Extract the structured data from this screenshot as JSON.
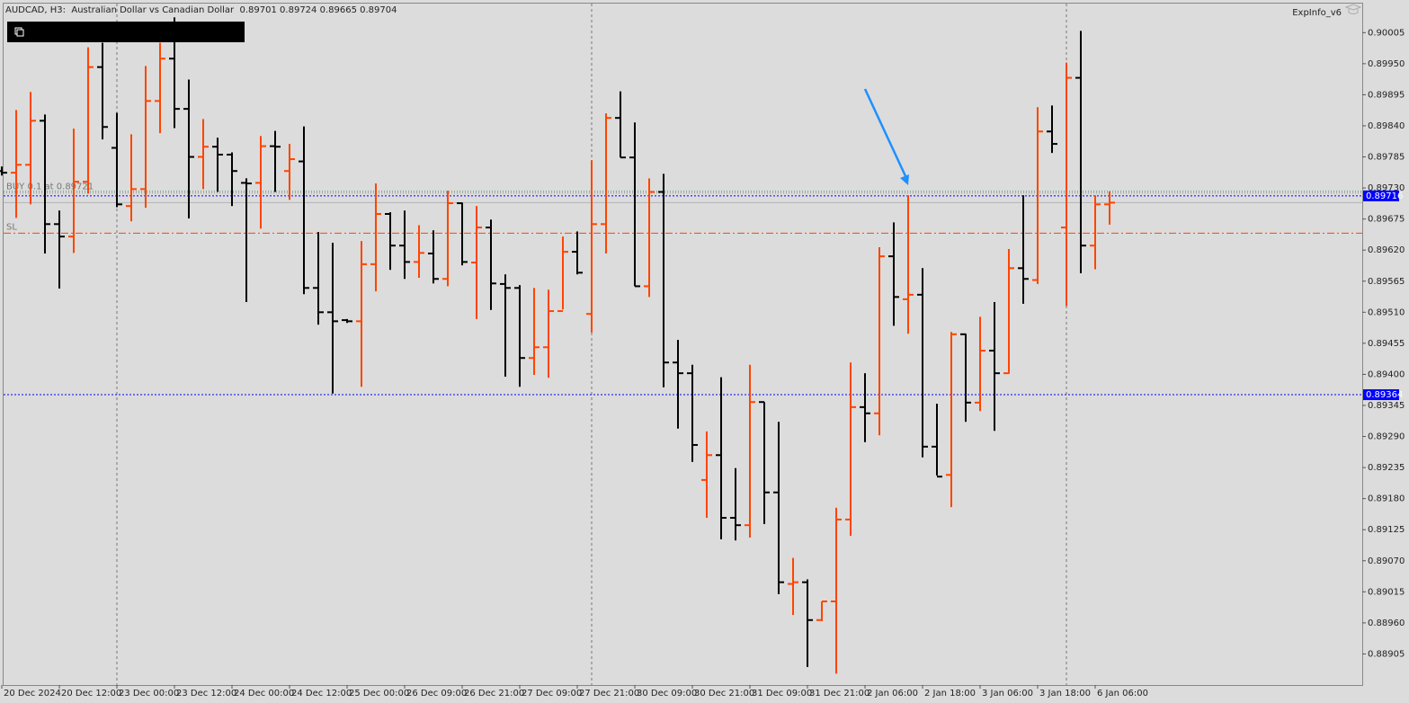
{
  "chart_data": {
    "type": "ohlc",
    "title": "AUDCAD, H3:  Australian Dollar vs Canadian Dollar  0.89701 0.89724 0.89665 0.89704",
    "indicator": "ExpInfo_v6",
    "up_color": "#ff4500",
    "down_color": "#000000",
    "grid": false,
    "categories": [
      "20 Dec 2024",
      null,
      null,
      null,
      "20 Dec 12:00",
      null,
      null,
      null,
      "23 Dec 00:00",
      null,
      null,
      null,
      "23 Dec 12:00",
      null,
      null,
      null,
      "24 Dec 00:00",
      null,
      null,
      null,
      "24 Dec 12:00",
      null,
      null,
      null,
      "25 Dec 00:00",
      null,
      null,
      null,
      "26 Dec 09:00",
      null,
      null,
      null,
      "26 Dec 21:00",
      null,
      null,
      null,
      "27 Dec 09:00",
      null,
      null,
      null,
      "27 Dec 21:00",
      null,
      null,
      null,
      "30 Dec 09:00",
      null,
      null,
      null,
      "30 Dec 21:00",
      null,
      null,
      null,
      "31 Dec 09:00",
      null,
      null,
      null,
      "31 Dec 21:00",
      null,
      null,
      null,
      "2 Jan 06:00",
      null,
      null,
      null,
      "2 Jan 18:00",
      null,
      null,
      null,
      "3 Jan 06:00",
      null,
      null,
      null,
      "3 Jan 18:00",
      null,
      null,
      null,
      "6 Jan 06:00",
      null
    ],
    "open": [
      0.8976,
      0.89757,
      0.89771,
      0.89849,
      0.89666,
      0.89644,
      0.89741,
      0.89944,
      0.89801,
      0.89698,
      0.89728,
      0.89884,
      0.89959,
      0.8987,
      0.89785,
      0.89803,
      0.89789,
      0.89739,
      0.89739,
      0.89804,
      0.8976,
      0.89777,
      0.89553,
      0.8951,
      0.89496,
      0.89494,
      0.89595,
      0.89684,
      0.89628,
      0.89599,
      0.89614,
      0.89569,
      0.89703,
      0.89598,
      0.8966,
      0.8956,
      0.89553,
      0.89429,
      0.89448,
      0.89512,
      0.89617,
      0.89507,
      0.89666,
      0.89854,
      0.89784,
      0.89556,
      0.89723,
      0.89421,
      0.89402,
      0.89213,
      0.89257,
      0.89146,
      0.89133,
      0.89351,
      0.89191,
      0.89029,
      0.89032,
      0.88965,
      0.88998,
      0.89143,
      0.89342,
      0.89331,
      0.89609,
      0.89533,
      0.89541,
      0.89272,
      0.89222,
      0.89471,
      0.8935,
      0.89442,
      0.89402,
      0.89588,
      0.89567,
      0.8983,
      0.8966,
      0.89925,
      0.89628,
      0.89701
    ],
    "high": [
      0.89768,
      0.89868,
      0.899,
      0.8986,
      0.8969,
      0.89835,
      0.89979,
      0.89987,
      0.89863,
      0.89825,
      0.89946,
      0.89987,
      0.90032,
      0.89922,
      0.89852,
      0.89819,
      0.89793,
      0.89747,
      0.89822,
      0.89831,
      0.89808,
      0.89839,
      0.89652,
      0.89633,
      0.89498,
      0.89636,
      0.89738,
      0.89687,
      0.8969,
      0.89664,
      0.89655,
      0.89725,
      0.89704,
      0.89698,
      0.89674,
      0.89577,
      0.89558,
      0.89553,
      0.8955,
      0.89644,
      0.89653,
      0.89779,
      0.89862,
      0.89901,
      0.89846,
      0.89747,
      0.89755,
      0.89461,
      0.89417,
      0.89299,
      0.89395,
      0.89234,
      0.89417,
      0.89351,
      0.89316,
      0.89075,
      0.89037,
      0.88998,
      0.89164,
      0.89421,
      0.89402,
      0.89625,
      0.89669,
      0.89717,
      0.89588,
      0.89348,
      0.89475,
      0.89472,
      0.89502,
      0.89528,
      0.89622,
      0.89717,
      0.89873,
      0.89876,
      0.89952,
      0.90008,
      0.89717,
      0.89724
    ],
    "low": [
      0.89752,
      0.89677,
      0.89701,
      0.89614,
      0.89552,
      0.89615,
      0.8972,
      0.89816,
      0.89696,
      0.89671,
      0.89695,
      0.89827,
      0.89836,
      0.89676,
      0.89728,
      0.89723,
      0.89698,
      0.89528,
      0.89658,
      0.89723,
      0.89709,
      0.89542,
      0.89488,
      0.89366,
      0.89491,
      0.89378,
      0.89547,
      0.89585,
      0.89569,
      0.89571,
      0.89561,
      0.89556,
      0.89593,
      0.89498,
      0.89514,
      0.89396,
      0.89378,
      0.89399,
      0.89394,
      0.89515,
      0.89577,
      0.89474,
      0.89614,
      0.89784,
      0.89556,
      0.89537,
      0.89377,
      0.89304,
      0.89245,
      0.89146,
      0.89108,
      0.89106,
      0.89111,
      0.89135,
      0.89011,
      0.88974,
      0.88882,
      0.88963,
      0.8887,
      0.89114,
      0.8928,
      0.89292,
      0.89486,
      0.89472,
      0.89253,
      0.89221,
      0.89165,
      0.89316,
      0.89335,
      0.893,
      0.89401,
      0.89525,
      0.8956,
      0.89792,
      0.89521,
      0.89579,
      0.89586,
      0.89665
    ],
    "close": [
      0.89757,
      0.89771,
      0.89849,
      0.89666,
      0.89644,
      0.89741,
      0.89944,
      0.89838,
      0.89701,
      0.89728,
      0.89884,
      0.89959,
      0.8987,
      0.89785,
      0.89803,
      0.89789,
      0.8976,
      0.89738,
      0.89804,
      0.89803,
      0.89781,
      0.89553,
      0.8951,
      0.89494,
      0.89494,
      0.89595,
      0.89684,
      0.89628,
      0.89599,
      0.89615,
      0.89569,
      0.89703,
      0.89599,
      0.8966,
      0.89561,
      0.89553,
      0.89429,
      0.89448,
      0.89512,
      0.89617,
      0.8958,
      0.89666,
      0.89854,
      0.89784,
      0.89556,
      0.89723,
      0.89421,
      0.89402,
      0.89275,
      0.89257,
      0.89146,
      0.89133,
      0.89351,
      0.89191,
      0.89032,
      0.89032,
      0.88965,
      0.88998,
      0.89143,
      0.89342,
      0.89331,
      0.89609,
      0.89537,
      0.89541,
      0.89272,
      0.89219,
      0.89471,
      0.8935,
      0.89442,
      0.89402,
      0.89588,
      0.89569,
      0.8983,
      0.89808,
      0.89925,
      0.89628,
      0.89701,
      0.89704
    ],
    "ylim": [
      0.8885,
      0.90058
    ],
    "yticks": [
      0.90005,
      {
        "value": 0.8995,
        "label": "0.89950"
      },
      0.89895,
      {
        "value": 0.8984,
        "label": "0.89840"
      },
      0.89785,
      {
        "value": 0.8973,
        "label": "0.89730"
      },
      0.89675,
      {
        "value": 0.8962,
        "label": "0.89620"
      },
      0.89565,
      {
        "value": 0.8951,
        "label": "0.89510"
      },
      0.89455,
      {
        "value": 0.894,
        "label": "0.89400"
      },
      0.89345,
      {
        "value": 0.8929,
        "label": "0.89290"
      },
      0.89235,
      {
        "value": 0.8918,
        "label": "0.89180"
      },
      0.89125,
      {
        "value": 0.8907,
        "label": "0.89070"
      },
      0.89015,
      {
        "value": 0.8896,
        "label": "0.88960"
      },
      0.88905
    ],
    "hlines": [
      {
        "value": 0.89724,
        "color": "#2e8b57",
        "dash": "1 2"
      },
      {
        "value": 0.89721,
        "color": "#8c9096",
        "dash": "1 2",
        "label": "BUY 0.1 at 0.89721"
      },
      {
        "value": 0.89716,
        "color": "#0000ff",
        "dash": "2 2",
        "tag": true
      },
      {
        "value": 0.89704,
        "color": "#b4b4b4",
        "dash": "none"
      },
      {
        "value": 0.8965,
        "color": "#ff4500",
        "dash": "8 3 2 3",
        "label": "SL"
      },
      {
        "value": 0.89364,
        "color": "#0000ff",
        "dash": "2 2",
        "tag": true
      }
    ]
  }
}
